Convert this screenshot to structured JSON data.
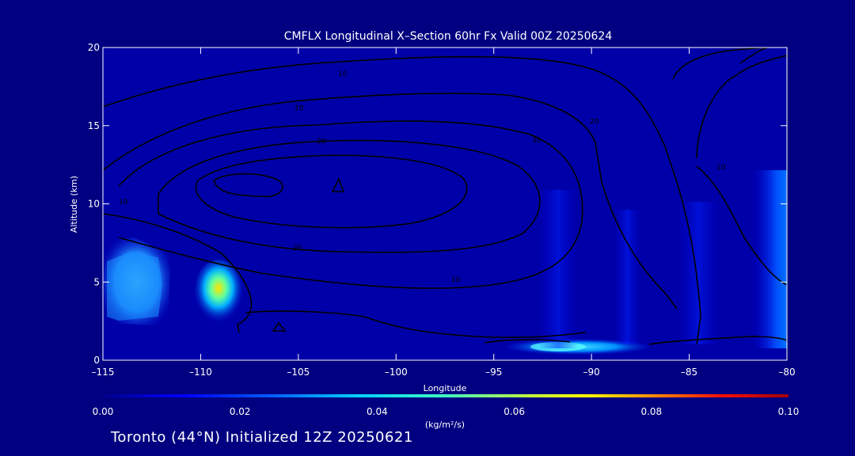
{
  "chart_data": {
    "type": "heatmap",
    "title": "CMFLX Longitudinal X–Section 60hr  Fx Valid 00Z 20250624",
    "xlabel": "Longitude",
    "ylabel": "Altitude (km)",
    "xlim": [
      -115,
      -80
    ],
    "ylim": [
      0,
      20
    ],
    "x_ticks": [
      -115,
      -110,
      -105,
      -100,
      -95,
      -90,
      -85,
      -80
    ],
    "x_tick_labels": [
      "–115",
      "–110",
      "–105",
      "–100",
      "–95",
      "–90",
      "–85",
      "–80"
    ],
    "y_ticks": [
      0,
      5,
      10,
      15,
      20
    ],
    "y_tick_labels": [
      "0",
      "5",
      "10",
      "15",
      "20"
    ],
    "colorbar": {
      "min": 0.0,
      "max": 0.1,
      "ticks": [
        0.0,
        0.02,
        0.04,
        0.06,
        0.08,
        0.1
      ],
      "tick_labels": [
        "0.00",
        "0.02",
        "0.04",
        "0.06",
        "0.08",
        "0.10"
      ],
      "units_label": "(kg/m²/s)",
      "colors": [
        "#00008f",
        "#0000ff",
        "#0080ff",
        "#00ffff",
        "#80ff80",
        "#ffff00",
        "#ff8000",
        "#ff0000",
        "#800000"
      ]
    },
    "flux_features": [
      {
        "lon_range": [
          -115,
          -112
        ],
        "alt_range": [
          2,
          7
        ],
        "peak": 0.025
      },
      {
        "lon_range": [
          -110.5,
          -108.5
        ],
        "alt_range": [
          2.8,
          6
        ],
        "peak": 0.065
      },
      {
        "lon_range": [
          -92.5,
          -88
        ],
        "alt_range": [
          0.3,
          1.3
        ],
        "peak": 0.03
      },
      {
        "lon_range": [
          -90,
          -89
        ],
        "alt_range": [
          1,
          10
        ],
        "peak": 0.008
      },
      {
        "lon_range": [
          -81,
          -80
        ],
        "alt_range": [
          2,
          11
        ],
        "peak": 0.018
      }
    ],
    "contour_labels": [
      "10",
      "10",
      "20",
      "30",
      "20",
      "20",
      "10",
      "10",
      "10"
    ],
    "contour_levels": [
      10,
      20,
      30
    ]
  },
  "footer": {
    "text": "Toronto (44°N) Initialized 12Z 20250621"
  }
}
